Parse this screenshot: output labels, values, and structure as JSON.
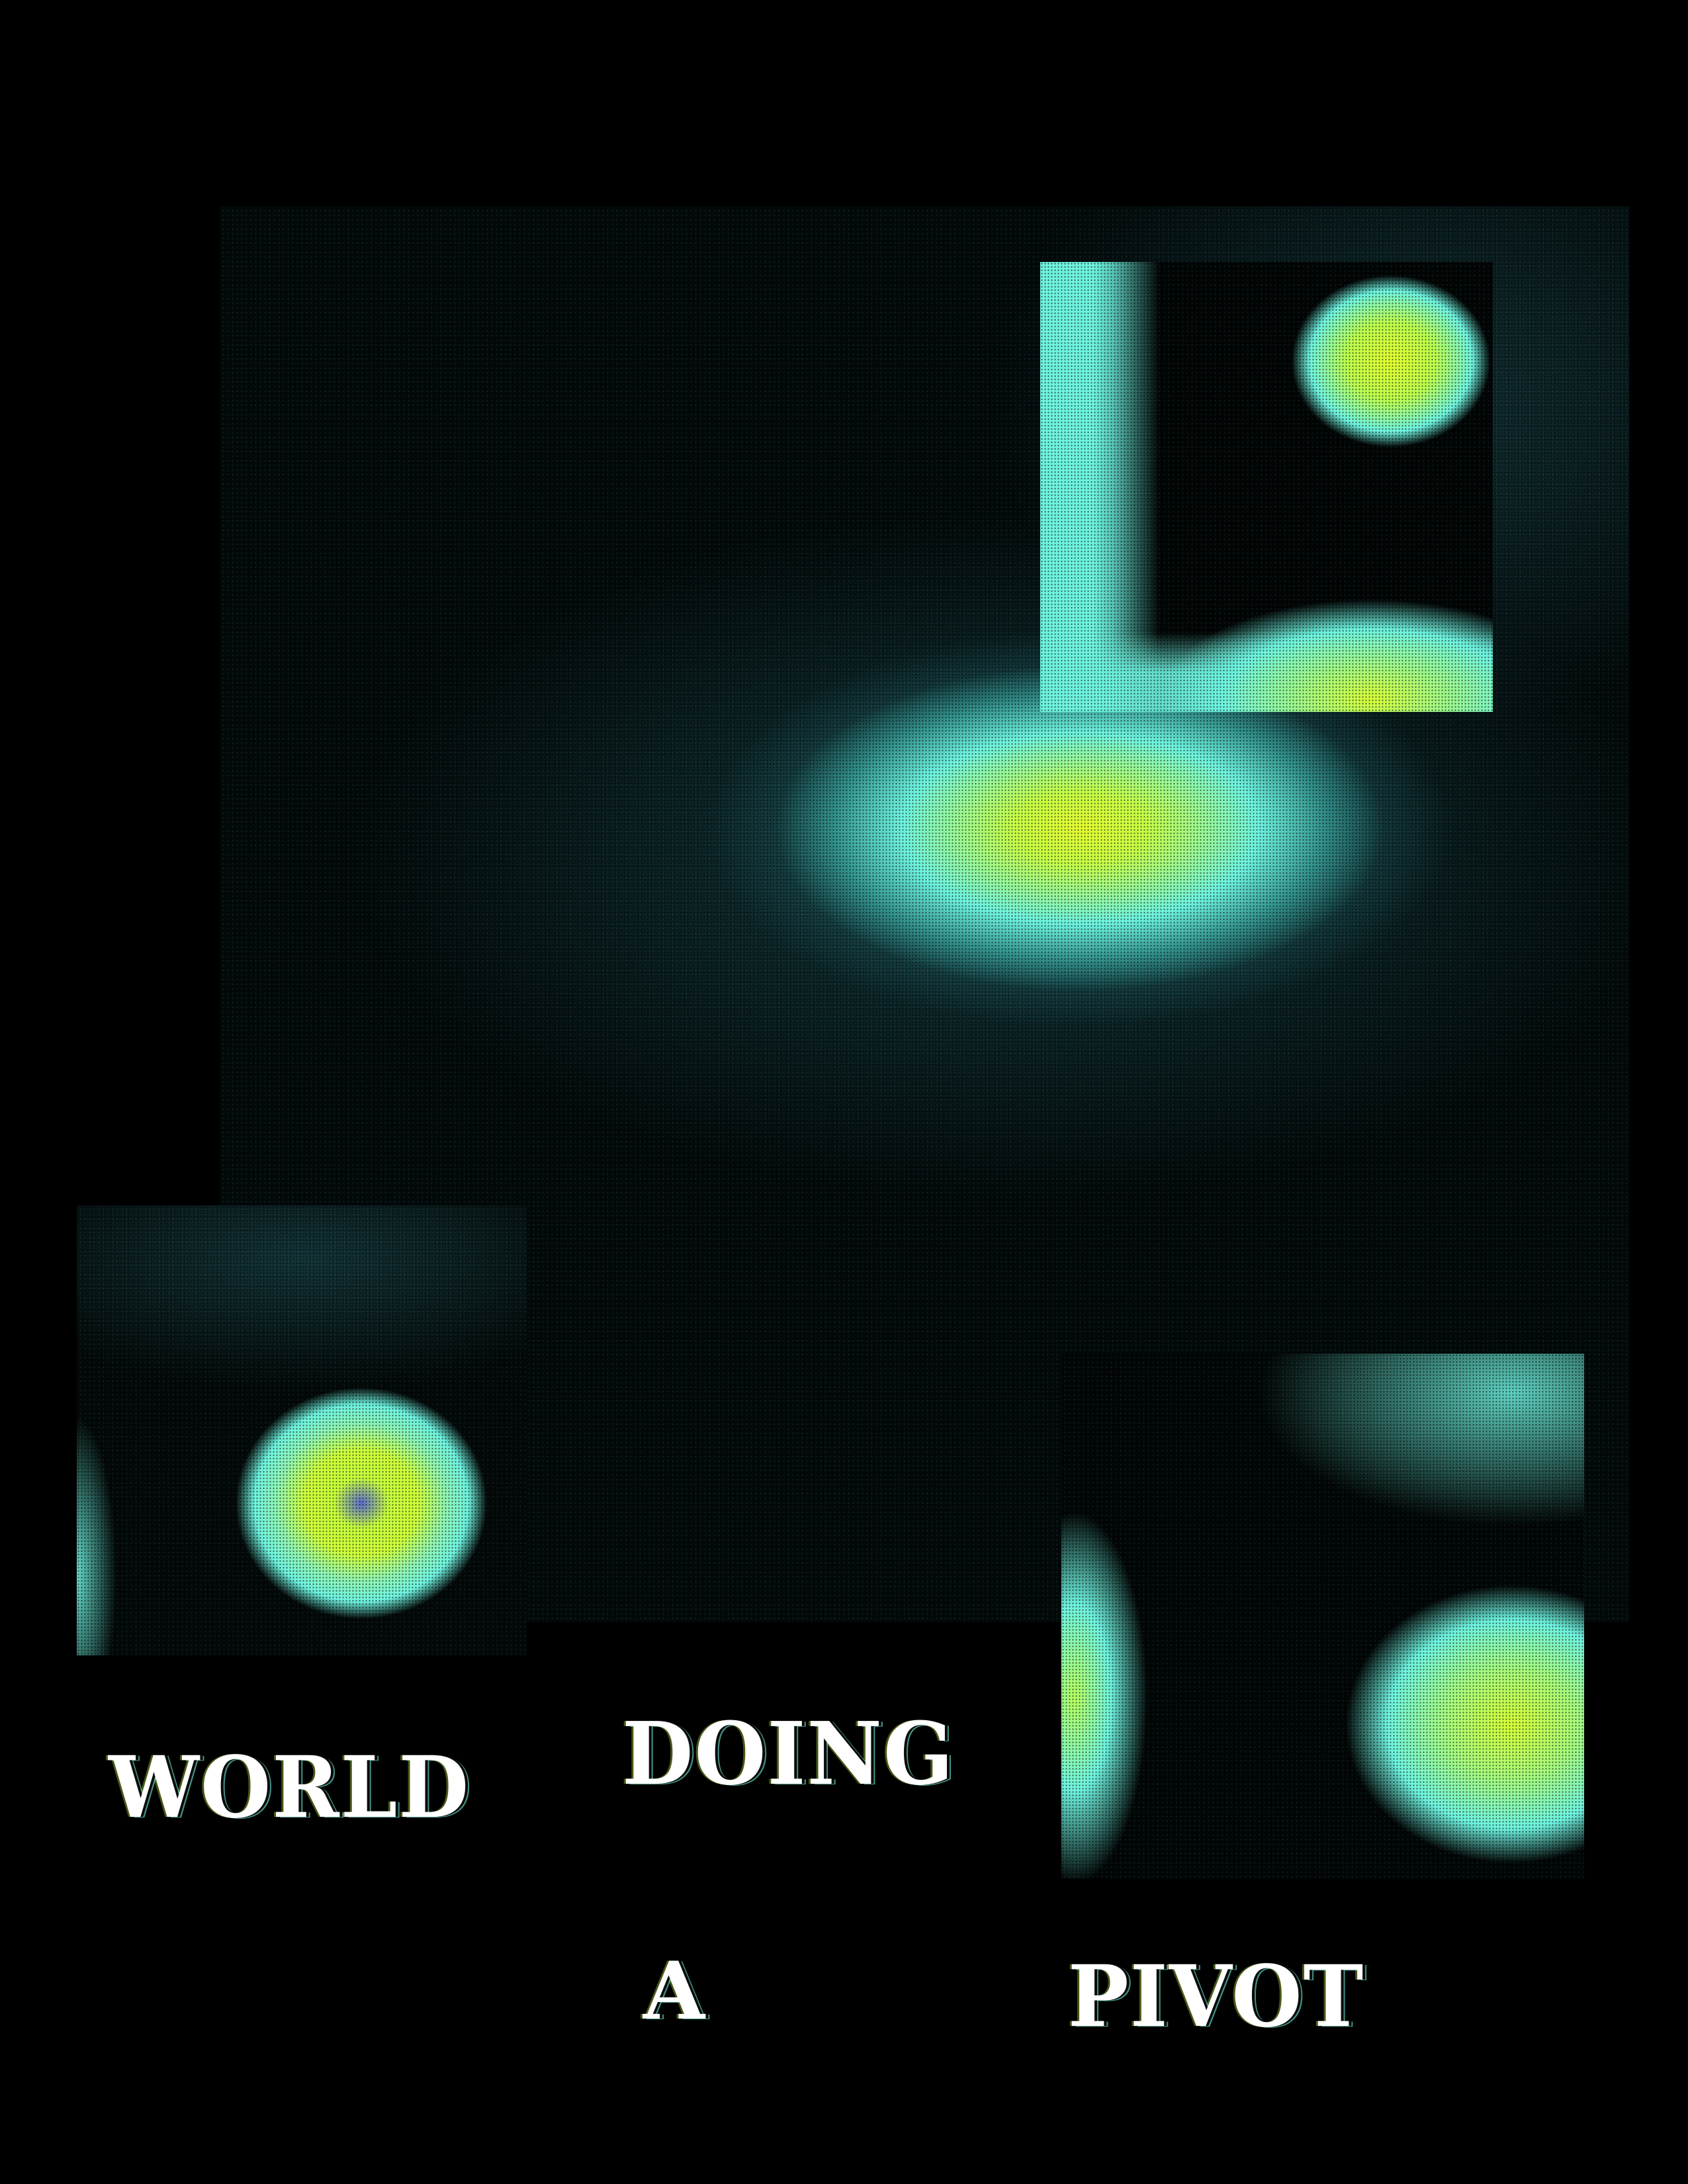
{
  "poster": {
    "words": {
      "world": "WORLD",
      "doing": "DOING",
      "a": "A",
      "pivot": "PIVOT"
    }
  },
  "colors": {
    "background": "#000000",
    "cyan_glow": "#6ef4e0",
    "yellow_core": "#e4ff2e",
    "text": "#ffffff"
  }
}
